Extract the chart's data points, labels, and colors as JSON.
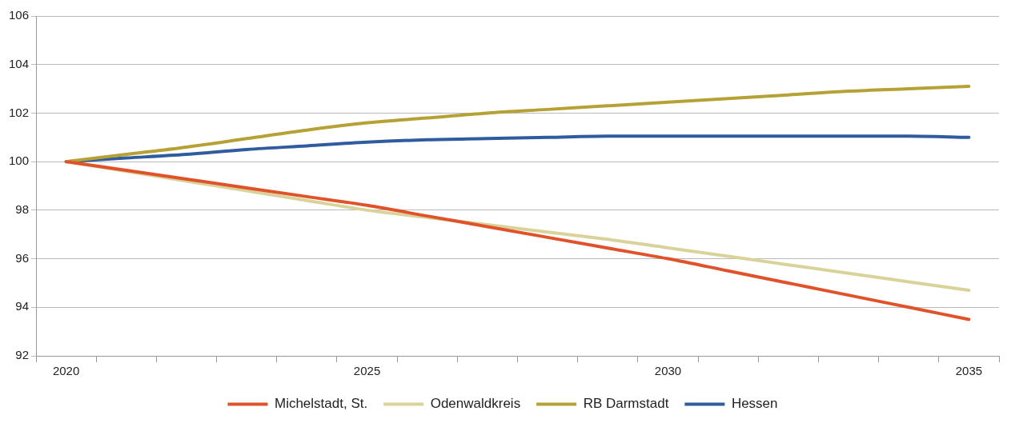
{
  "chart_data": {
    "type": "line",
    "categories": [
      "2020",
      null,
      null,
      null,
      null,
      "2025",
      null,
      null,
      null,
      null,
      "2030",
      null,
      null,
      null,
      null,
      "2035"
    ],
    "series": [
      {
        "name": "Michelstadt, St.",
        "color": "#e0522a",
        "values": [
          100,
          99.64,
          99.28,
          98.92,
          98.56,
          98.2,
          97.76,
          97.32,
          96.88,
          96.44,
          96.0,
          95.5,
          95.0,
          94.5,
          94.0,
          93.5
        ]
      },
      {
        "name": "Odenwaldkreis",
        "color": "#d9d39a",
        "values": [
          100,
          99.6,
          99.2,
          98.8,
          98.4,
          98.0,
          97.7,
          97.4,
          97.1,
          96.8,
          96.45,
          96.1,
          95.75,
          95.4,
          95.05,
          94.7
        ]
      },
      {
        "name": "RB Darmstadt",
        "color": "#b5a136",
        "values": [
          100,
          100.3,
          100.6,
          100.95,
          101.3,
          101.6,
          101.8,
          102.0,
          102.15,
          102.3,
          102.45,
          102.6,
          102.75,
          102.9,
          103.0,
          103.1
        ]
      },
      {
        "name": "Hessen",
        "color": "#2e5c9e",
        "values": [
          100,
          100.15,
          100.3,
          100.5,
          100.65,
          100.8,
          100.9,
          100.95,
          101.0,
          101.05,
          101.05,
          101.05,
          101.05,
          101.05,
          101.05,
          101.0
        ]
      }
    ],
    "ylim": [
      92,
      106
    ],
    "yticks": [
      92,
      94,
      96,
      98,
      100,
      102,
      104,
      106
    ],
    "grid": "y",
    "legend": "bottom",
    "marker": "none",
    "line_style": "solid"
  }
}
